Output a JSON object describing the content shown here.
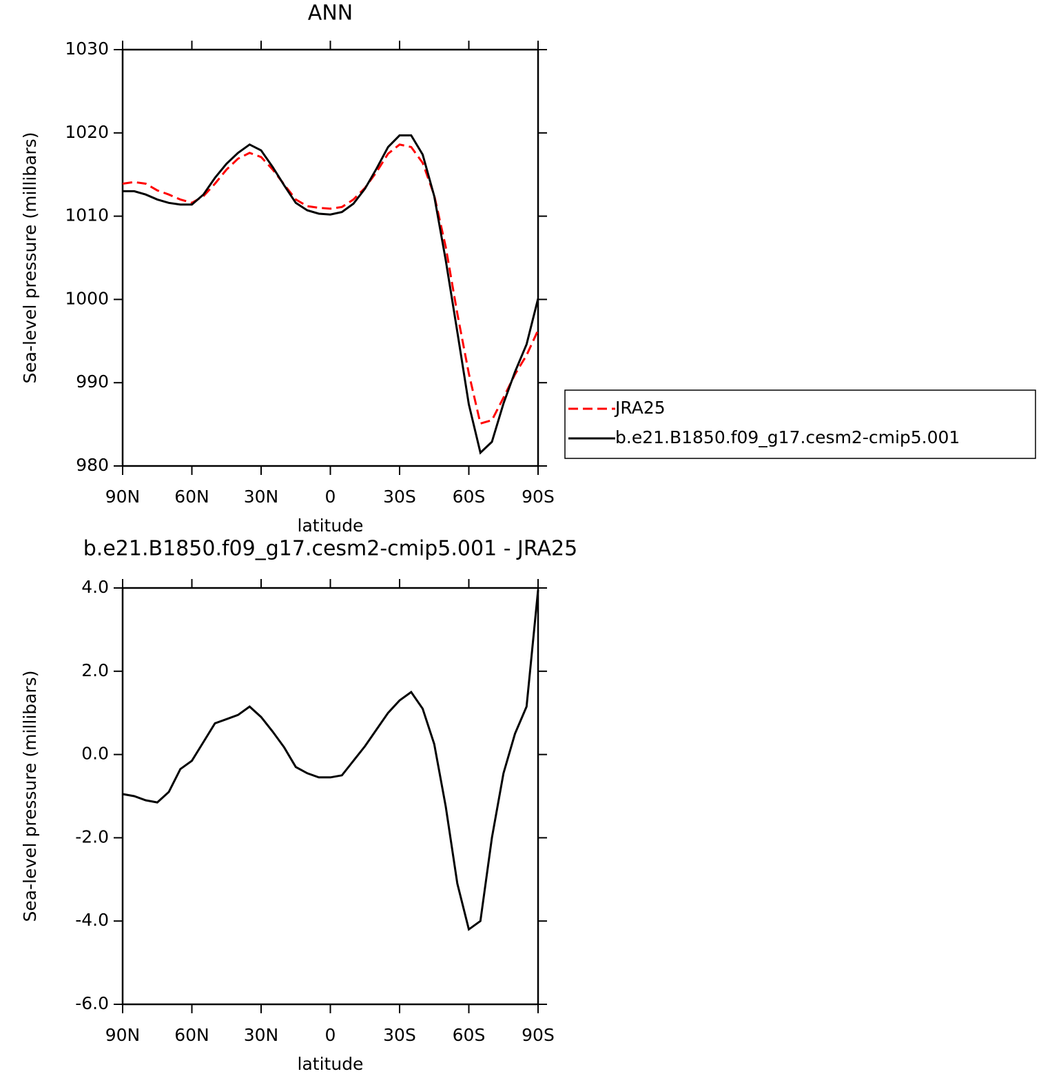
{
  "chart_data": [
    {
      "type": "line",
      "title": "ANN",
      "x_label": "latitude",
      "y_label": "Sea-level pressure (millibars)",
      "x": [
        90,
        85,
        80,
        75,
        70,
        65,
        60,
        55,
        50,
        45,
        40,
        35,
        30,
        25,
        20,
        15,
        10,
        5,
        0,
        -5,
        -10,
        -15,
        -20,
        -25,
        -30,
        -35,
        -40,
        -45,
        -50,
        -55,
        -60,
        -65,
        -70,
        -75,
        -80,
        -85,
        -90
      ],
      "xlim": [
        90,
        -90
      ],
      "xticks": [
        {
          "value": 90,
          "label": "90N"
        },
        {
          "value": 60,
          "label": "60N"
        },
        {
          "value": 30,
          "label": "30N"
        },
        0,
        {
          "value": -30,
          "label": "30S"
        },
        {
          "value": -60,
          "label": "60S"
        },
        {
          "value": -90,
          "label": "90S"
        }
      ],
      "ylim": [
        980,
        1030
      ],
      "yticks": [
        980,
        990,
        1000,
        1010,
        1020,
        1030
      ],
      "legend": "outside-right",
      "series": [
        {
          "name": "JRA25",
          "color": "#ff0000",
          "style": "dashed",
          "values": [
            1013.9,
            1014.1,
            1013.9,
            1013.1,
            1012.6,
            1012.0,
            1011.6,
            1012.4,
            1013.9,
            1015.6,
            1016.9,
            1017.6,
            1017.1,
            1015.6,
            1013.8,
            1012.0,
            1011.2,
            1011.0,
            1010.9,
            1011.1,
            1012.0,
            1013.4,
            1015.3,
            1017.5,
            1018.6,
            1018.3,
            1016.4,
            1012.5,
            1006.3,
            998.3,
            991.1,
            985.1,
            985.5,
            988.2,
            991.0,
            993.3,
            996.3
          ]
        },
        {
          "name": "b.e21.B1850.f09_g17.cesm2-cmip5.001",
          "color": "#000000",
          "style": "solid",
          "values": [
            1013.0,
            1013.0,
            1012.6,
            1012.0,
            1011.6,
            1011.4,
            1011.4,
            1012.6,
            1014.6,
            1016.3,
            1017.6,
            1018.6,
            1017.9,
            1015.9,
            1013.7,
            1011.6,
            1010.7,
            1010.3,
            1010.2,
            1010.5,
            1011.5,
            1013.3,
            1015.7,
            1018.3,
            1019.7,
            1019.7,
            1017.4,
            1012.4,
            1004.7,
            996.1,
            987.4,
            981.6,
            982.9,
            987.5,
            991.3,
            994.6,
            1000.1
          ]
        }
      ]
    },
    {
      "type": "line",
      "title": "b.e21.B1850.f09_g17.cesm2-cmip5.001 - JRA25",
      "x_label": "latitude",
      "y_label": "Sea-level pressure (millibars)",
      "x": [
        90,
        85,
        80,
        75,
        70,
        65,
        60,
        55,
        50,
        45,
        40,
        35,
        30,
        25,
        20,
        15,
        10,
        5,
        0,
        -5,
        -10,
        -15,
        -20,
        -25,
        -30,
        -35,
        -40,
        -45,
        -50,
        -55,
        -60,
        -65,
        -70,
        -75,
        -80,
        -85,
        -90
      ],
      "xlim": [
        90,
        -90
      ],
      "xticks": [
        {
          "value": 90,
          "label": "90N"
        },
        {
          "value": 60,
          "label": "60N"
        },
        {
          "value": 30,
          "label": "30N"
        },
        0,
        {
          "value": -30,
          "label": "30S"
        },
        {
          "value": -60,
          "label": "60S"
        },
        {
          "value": -90,
          "label": "90S"
        }
      ],
      "ylim": [
        -6,
        4
      ],
      "yticks": [
        {
          "value": -6,
          "label": "-6.0"
        },
        {
          "value": -4,
          "label": "-4.0"
        },
        {
          "value": -2,
          "label": "-2.0"
        },
        {
          "value": 0,
          "label": "0.0"
        },
        {
          "value": 2,
          "label": "2.0"
        },
        {
          "value": 4,
          "label": "4.0"
        }
      ],
      "color": "#000000",
      "values": [
        -0.95,
        -1.0,
        -1.1,
        -1.15,
        -0.9,
        -0.35,
        -0.15,
        0.3,
        0.75,
        0.85,
        0.95,
        1.15,
        0.9,
        0.55,
        0.17,
        -0.3,
        -0.45,
        -0.55,
        -0.55,
        -0.5,
        -0.15,
        0.2,
        0.6,
        1.0,
        1.3,
        1.5,
        1.1,
        0.25,
        -1.25,
        -3.1,
        -4.2,
        -4.0,
        -2.0,
        -0.45,
        0.5,
        1.15,
        3.95
      ]
    }
  ]
}
